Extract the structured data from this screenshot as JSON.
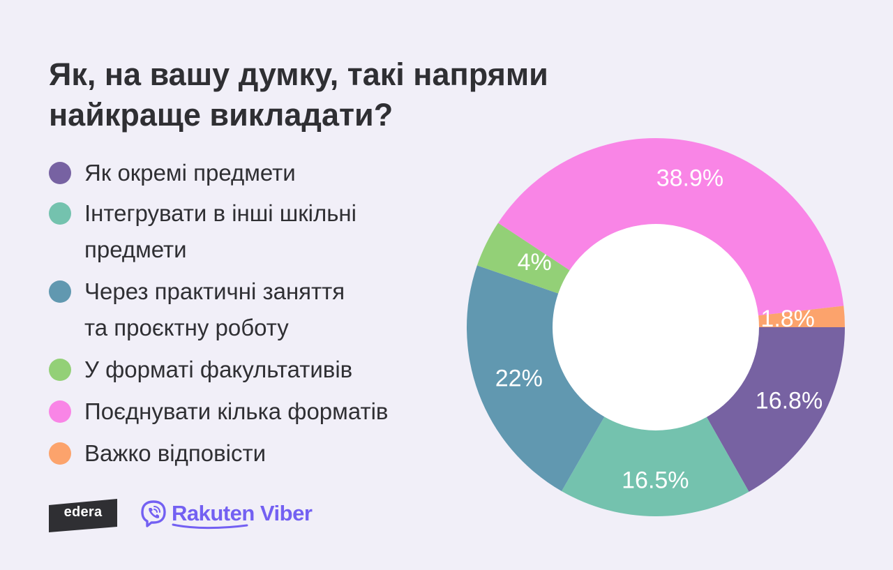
{
  "title_lines": [
    "Як, на вашу думку, такі напрями",
    "найкраще викладати?"
  ],
  "colors": {
    "background": "#f1eff8",
    "text": "#2f2f33",
    "label": "#ffffff",
    "hole": "#ffffff"
  },
  "legend": [
    {
      "lines": [
        "Як окремі предмети"
      ],
      "color": "#7762a2"
    },
    {
      "lines": [
        "Інтегрувати в інші шкільні",
        "предмети"
      ],
      "color": "#74c2ae"
    },
    {
      "lines": [
        "Через практичні заняття",
        "та проєктну роботу"
      ],
      "color": "#6198b0"
    },
    {
      "lines": [
        "У форматі факультативів"
      ],
      "color": "#93d077"
    },
    {
      "lines": [
        "Поєднувати кілька форматів"
      ],
      "color": "#f985e6"
    },
    {
      "lines": [
        "Важко відповісти"
      ],
      "color": "#fca36c"
    }
  ],
  "chart_data": {
    "type": "pie",
    "variant": "donut",
    "title": "Як, на вашу думку, такі напрями найкраще викладати?",
    "categories": [
      "Як окремі предмети",
      "Інтегрувати в інші шкільні предмети",
      "Через практичні заняття та проєктну роботу",
      "У форматі факультативів",
      "Поєднувати кілька форматів",
      "Важко відповісти"
    ],
    "values": [
      16.8,
      16.5,
      22,
      4,
      38.9,
      1.8
    ],
    "value_labels": [
      "16.8%",
      "16.5%",
      "22%",
      "4%",
      "38.9%",
      "1.8%"
    ],
    "unit": "%",
    "colors": [
      "#7762a2",
      "#74c2ae",
      "#6198b0",
      "#93d077",
      "#f985e6",
      "#fca36c"
    ],
    "legend_position": "left",
    "start": "3 o'clock",
    "direction": "clockwise"
  },
  "logos": {
    "edera": "edera",
    "viber": "Rakuten Viber",
    "edera_color": "#2f2f33",
    "viber_color": "#7360f2",
    "viber_icon": "viber-phone-bubble-icon"
  }
}
